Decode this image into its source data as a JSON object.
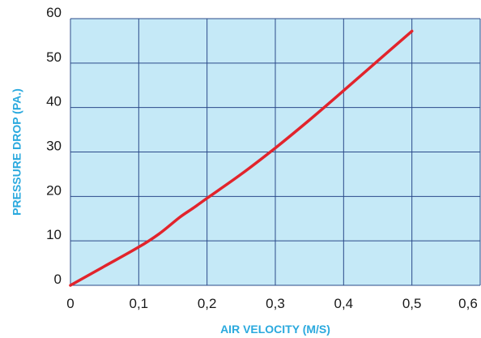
{
  "chart_data": {
    "type": "line",
    "title": "",
    "xlabel": "AIR VELOCITY (M/S)",
    "ylabel": "PRESSURE  DROP (PA.)",
    "xlim": [
      0,
      0.6
    ],
    "ylim": [
      0,
      60
    ],
    "x_ticks": [
      "0",
      "0,1",
      "0,2",
      "0,3",
      "0,4",
      "0,5",
      "0,6"
    ],
    "y_ticks": [
      "0",
      "10",
      "20",
      "30",
      "40",
      "50",
      "60"
    ],
    "grid": true,
    "legend": "none",
    "series": [
      {
        "x": [
          0,
          0.05,
          0.1,
          0.13,
          0.16,
          0.18,
          0.2,
          0.25,
          0.3,
          0.35,
          0.4,
          0.45,
          0.5
        ],
        "y": [
          0,
          4.3,
          8.6,
          11.6,
          15.3,
          17.4,
          19.6,
          25.0,
          30.9,
          37.2,
          43.8,
          50.5,
          57.2
        ],
        "color": "#e2242c"
      }
    ],
    "colors": {
      "plot_background": "#c5e9f7",
      "grid": "#2a4a8a",
      "axis_title": "#2aa9de",
      "line": "#e2242c"
    }
  }
}
